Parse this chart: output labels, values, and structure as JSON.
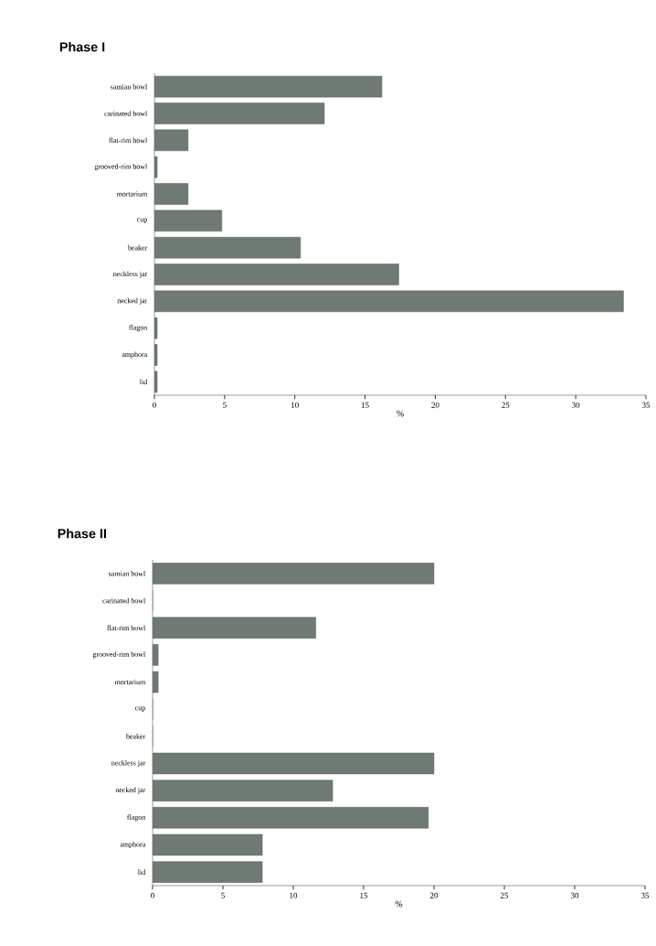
{
  "chart_data": [
    {
      "type": "bar",
      "orientation": "horizontal",
      "title": "Phase  I",
      "xlabel": "%",
      "categories": [
        "samian bowl",
        "carinated bowl",
        "flat-rim bowl",
        "grooved-rim bowl",
        "mortarium",
        "cup",
        "beaker",
        "neckless jar",
        "necked jar",
        "flagon",
        "amphora",
        "lid"
      ],
      "values": [
        16.2,
        12.1,
        2.4,
        0.2,
        2.4,
        4.8,
        10.4,
        17.4,
        33.4,
        0.2,
        0.2,
        0.2
      ],
      "color": "#6e7a72",
      "xlim": [
        0,
        35
      ],
      "xticks": [
        0,
        5,
        10,
        15,
        20,
        25,
        30,
        35
      ]
    },
    {
      "type": "bar",
      "orientation": "horizontal",
      "title": "Phase  II",
      "xlabel": "%",
      "categories": [
        "samian bowl",
        "carinated bowl",
        "flat-rim bowl",
        "grooved-rim bowl",
        "mortarium",
        "cup",
        "beaker",
        "neckless jar",
        "necked jar",
        "flagon",
        "amphora",
        "lid"
      ],
      "values": [
        20,
        0,
        11.6,
        0.4,
        0.4,
        0,
        0,
        20,
        12.8,
        19.6,
        7.8,
        7.8
      ],
      "color": "#6e7a72",
      "xlim": [
        0,
        35
      ],
      "xticks": [
        0,
        5,
        10,
        15,
        20,
        25,
        30,
        35
      ]
    }
  ]
}
